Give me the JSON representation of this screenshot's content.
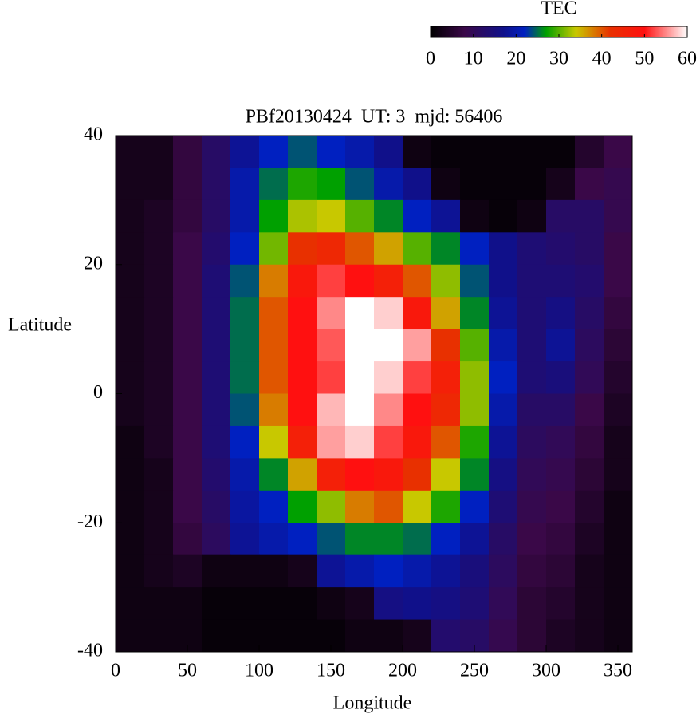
{
  "chart_data": {
    "type": "heatmap",
    "title": "PBf20130424  UT: 3  mjd: 56406",
    "x_label": "Longitude",
    "y_label": "Latitude",
    "colorbar_title": "TEC",
    "colorbar_lim": [
      0,
      60
    ],
    "colorbar_ticks": [
      0,
      10,
      20,
      30,
      40,
      50,
      60
    ],
    "colorscale": [
      [
        0,
        "#000000"
      ],
      [
        8,
        "#3a0848"
      ],
      [
        17,
        "#10108a"
      ],
      [
        22,
        "#0020c0"
      ],
      [
        27,
        "#00a000"
      ],
      [
        34,
        "#c8c800"
      ],
      [
        42,
        "#e83000"
      ],
      [
        50,
        "#ff1010"
      ],
      [
        60,
        "#ffffff"
      ]
    ],
    "xlim": [
      0,
      360
    ],
    "ylim": [
      -40,
      40
    ],
    "xticks": [
      0,
      50,
      100,
      150,
      200,
      250,
      300,
      350
    ],
    "yticks": [
      -40,
      -20,
      0,
      20,
      40
    ],
    "xbins": [
      0,
      20,
      40,
      60,
      80,
      100,
      120,
      140,
      160,
      180,
      200,
      220,
      240,
      260,
      280,
      300,
      320,
      340,
      360
    ],
    "ybins": [
      40,
      35,
      30,
      25,
      20,
      15,
      10,
      5,
      0,
      -5,
      -10,
      -15,
      -20,
      -25,
      -30,
      -35,
      -40
    ],
    "z": [
      [
        3,
        3,
        7,
        12,
        18,
        22,
        24,
        22,
        20,
        17,
        2,
        1,
        1,
        1,
        1,
        1,
        5,
        8
      ],
      [
        3,
        3,
        7,
        12,
        20,
        25,
        28,
        27,
        24,
        20,
        17,
        2,
        1,
        1,
        1,
        3,
        8,
        9
      ],
      [
        3,
        4,
        7,
        12,
        20,
        27,
        33,
        34,
        30,
        26,
        22,
        18,
        2,
        1,
        2,
        12,
        12,
        9
      ],
      [
        3,
        4,
        8,
        13,
        22,
        31,
        42,
        44,
        40,
        36,
        30,
        26,
        22,
        17,
        14,
        13,
        12,
        8
      ],
      [
        3,
        4,
        8,
        14,
        24,
        38,
        48,
        52,
        50,
        46,
        40,
        32,
        24,
        17,
        14,
        14,
        13,
        8
      ],
      [
        3,
        4,
        8,
        14,
        25,
        40,
        50,
        55,
        60,
        58,
        48,
        36,
        26,
        18,
        14,
        16,
        12,
        7
      ],
      [
        3,
        4,
        8,
        14,
        25,
        40,
        50,
        53,
        60,
        60,
        56,
        42,
        30,
        20,
        14,
        18,
        11,
        6
      ],
      [
        3,
        4,
        8,
        14,
        25,
        40,
        50,
        52,
        60,
        58,
        52,
        46,
        32,
        22,
        14,
        15,
        10,
        5
      ],
      [
        3,
        4,
        8,
        14,
        24,
        38,
        50,
        57,
        60,
        55,
        50,
        44,
        32,
        20,
        12,
        12,
        8,
        4
      ],
      [
        2,
        4,
        8,
        14,
        22,
        34,
        46,
        56,
        58,
        52,
        48,
        40,
        28,
        18,
        11,
        10,
        7,
        3
      ],
      [
        2,
        3,
        8,
        13,
        20,
        26,
        36,
        46,
        50,
        48,
        42,
        34,
        26,
        16,
        10,
        9,
        6,
        3
      ],
      [
        2,
        3,
        8,
        12,
        19,
        22,
        27,
        32,
        38,
        40,
        34,
        28,
        22,
        14,
        9,
        8,
        5,
        2
      ],
      [
        2,
        3,
        7,
        11,
        18,
        20,
        22,
        24,
        26,
        26,
        25,
        22,
        18,
        12,
        8,
        7,
        4,
        2
      ],
      [
        2,
        3,
        4,
        2,
        2,
        2,
        3,
        18,
        20,
        22,
        20,
        18,
        15,
        11,
        7,
        6,
        3,
        2
      ],
      [
        2,
        2,
        2,
        1,
        1,
        1,
        1,
        2,
        3,
        16,
        17,
        16,
        14,
        10,
        6,
        5,
        3,
        2
      ],
      [
        2,
        2,
        2,
        1,
        1,
        1,
        1,
        1,
        2,
        2,
        3,
        13,
        12,
        9,
        6,
        4,
        3,
        2
      ]
    ]
  }
}
